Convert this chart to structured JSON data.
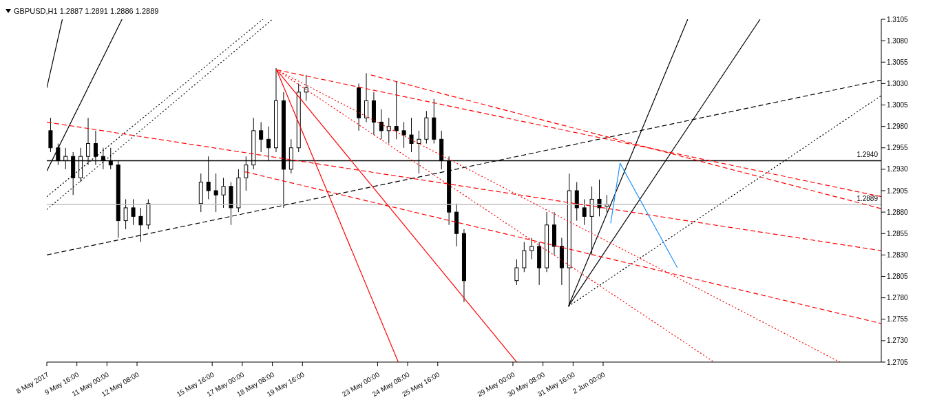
{
  "chart_data": {
    "type": "candlestick",
    "title": "GBPUSD,H1  1.2887 1.2891 1.2886 1.2889",
    "color": "#000000",
    "marker": "none",
    "x": [
      "2017-05-08T12:00",
      "2017-05-08T20:00",
      "2017-05-09T04:00",
      "2017-05-09T12:00",
      "2017-05-09T20:00",
      "2017-05-10T04:00",
      "2017-05-10T12:00",
      "2017-05-10T20:00",
      "2017-05-11T04:00",
      "2017-05-11T12:00",
      "2017-05-11T20:00",
      "2017-05-12T04:00",
      "2017-05-12T12:00",
      "2017-05-12T20:00",
      "2017-05-15T04:00",
      "2017-05-15T12:00",
      "2017-05-15T20:00",
      "2017-05-16T04:00",
      "2017-05-16T12:00",
      "2017-05-16T20:00",
      "2017-05-17T04:00",
      "2017-05-17T12:00",
      "2017-05-17T20:00",
      "2017-05-18T04:00",
      "2017-05-18T12:00",
      "2017-05-18T20:00",
      "2017-05-19T04:00",
      "2017-05-19T12:00",
      "2017-05-19T20:00",
      "2017-05-22T04:00",
      "2017-05-22T12:00",
      "2017-05-22T20:00",
      "2017-05-23T04:00",
      "2017-05-23T12:00",
      "2017-05-23T20:00",
      "2017-05-24T04:00",
      "2017-05-24T12:00",
      "2017-05-24T20:00",
      "2017-05-25T04:00",
      "2017-05-25T12:00",
      "2017-05-25T20:00",
      "2017-05-26T04:00",
      "2017-05-26T12:00",
      "2017-05-26T20:00",
      "2017-05-29T04:00",
      "2017-05-29T12:00",
      "2017-05-29T20:00",
      "2017-05-30T04:00",
      "2017-05-30T12:00",
      "2017-05-30T20:00",
      "2017-05-31T04:00",
      "2017-05-31T12:00",
      "2017-05-31T20:00",
      "2017-06-01T04:00",
      "2017-06-01T12:00",
      "2017-06-01T20:00",
      "2017-06-02T04:00"
    ],
    "ohlc": [
      [
        1.2975,
        1.299,
        1.295,
        1.2955
      ],
      [
        1.2955,
        1.296,
        1.2935,
        1.294
      ],
      [
        1.294,
        1.2955,
        1.293,
        1.2945
      ],
      [
        1.2945,
        1.295,
        1.29,
        1.292
      ],
      [
        1.292,
        1.2955,
        1.2915,
        1.2945
      ],
      [
        1.2945,
        1.299,
        1.2935,
        1.296
      ],
      [
        1.296,
        1.2975,
        1.2935,
        1.2945
      ],
      [
        1.2945,
        1.2955,
        1.293,
        1.294
      ],
      [
        1.294,
        1.2955,
        1.293,
        1.2935
      ],
      [
        1.2935,
        1.294,
        1.285,
        1.287
      ],
      [
        1.287,
        1.2895,
        1.286,
        1.2885
      ],
      [
        1.2885,
        1.2895,
        1.2865,
        1.2875
      ],
      [
        1.2875,
        1.2885,
        1.2845,
        1.2865
      ],
      [
        1.2865,
        1.2895,
        1.286,
        1.289
      ],
      [
        1.289,
        1.2925,
        1.288,
        1.2915
      ],
      [
        1.2915,
        1.2945,
        1.2895,
        1.2905
      ],
      [
        1.2905,
        1.2925,
        1.288,
        1.29
      ],
      [
        1.29,
        1.292,
        1.2885,
        1.291
      ],
      [
        1.291,
        1.2915,
        1.2865,
        1.2885
      ],
      [
        1.2885,
        1.293,
        1.288,
        1.292
      ],
      [
        1.292,
        1.2945,
        1.2905,
        1.2935
      ],
      [
        1.2935,
        1.299,
        1.293,
        1.2975
      ],
      [
        1.2975,
        1.2985,
        1.295,
        1.2965
      ],
      [
        1.2965,
        1.298,
        1.294,
        1.2955
      ],
      [
        1.2955,
        1.3048,
        1.295,
        1.301
      ],
      [
        1.301,
        1.302,
        1.2885,
        1.293
      ],
      [
        1.293,
        1.2965,
        1.2925,
        1.2955
      ],
      [
        1.2955,
        1.303,
        1.295,
        1.302
      ],
      [
        1.302,
        1.304,
        1.301,
        1.3025
      ],
      [
        1.3025,
        1.303,
        1.2975,
        1.299
      ],
      [
        1.299,
        1.3042,
        1.2985,
        1.301
      ],
      [
        1.301,
        1.302,
        1.297,
        1.2985
      ],
      [
        1.2985,
        1.3,
        1.2965,
        1.2975
      ],
      [
        1.2975,
        1.299,
        1.296,
        1.298
      ],
      [
        1.298,
        1.3032,
        1.2965,
        1.2975
      ],
      [
        1.2975,
        1.2985,
        1.2955,
        1.297
      ],
      [
        1.297,
        1.299,
        1.295,
        1.296
      ],
      [
        1.296,
        1.2975,
        1.2925,
        1.2965
      ],
      [
        1.2965,
        1.2998,
        1.296,
        1.299
      ],
      [
        1.299,
        1.3012,
        1.296,
        1.2965
      ],
      [
        1.2965,
        1.2975,
        1.293,
        1.294
      ],
      [
        1.294,
        1.2945,
        1.2865,
        1.288
      ],
      [
        1.288,
        1.289,
        1.284,
        1.2855
      ],
      [
        1.2855,
        1.286,
        1.2775,
        1.28
      ],
      [
        1.28,
        1.2825,
        1.2795,
        1.2815
      ],
      [
        1.2815,
        1.2845,
        1.281,
        1.2835
      ],
      [
        1.2835,
        1.285,
        1.2825,
        1.284
      ],
      [
        1.284,
        1.2845,
        1.2795,
        1.2815
      ],
      [
        1.2815,
        1.288,
        1.281,
        1.2865
      ],
      [
        1.2865,
        1.288,
        1.283,
        1.284
      ],
      [
        1.284,
        1.285,
        1.2795,
        1.2815
      ],
      [
        1.2815,
        1.2925,
        1.277,
        1.2905
      ],
      [
        1.2905,
        1.2915,
        1.287,
        1.2885
      ],
      [
        1.2885,
        1.2895,
        1.2865,
        1.2875
      ],
      [
        1.2875,
        1.291,
        1.283,
        1.2895
      ],
      [
        1.2895,
        1.2918,
        1.2875,
        1.2885
      ],
      [
        1.2887,
        1.29,
        1.288,
        1.2889
      ]
    ],
    "series": [
      {
        "type": "line",
        "color": "#000000",
        "line_style": "solid",
        "x": [
          "2017-05-31T11:00",
          "2017-06-05T18:00"
        ],
        "values": [
          1.277,
          1.3105
        ]
      },
      {
        "type": "line",
        "color": "#000000",
        "line_style": "solid",
        "x": [
          "2017-05-31T11:00",
          "2017-06-08T23:00"
        ],
        "values": [
          1.277,
          1.3105
        ]
      },
      {
        "type": "line",
        "color": "#000000",
        "line_style": "dotted",
        "x": [
          "2017-05-31T11:00",
          "2017-06-14T08:00"
        ],
        "values": [
          1.277,
          1.3016
        ]
      },
      {
        "type": "line",
        "color": "#000000",
        "line_style": "dashed",
        "x": [
          "2017-05-08T08:00",
          "2017-06-14T08:00"
        ],
        "values": [
          1.283,
          1.3034
        ]
      },
      {
        "type": "line",
        "color": "#000000",
        "line_style": "dotted",
        "x": [
          "2017-05-08T08:00",
          "2017-05-17T22:00"
        ],
        "values": [
          1.2898,
          1.3105
        ]
      },
      {
        "type": "line",
        "color": "#000000",
        "line_style": "dotted",
        "x": [
          "2017-05-08T08:00",
          "2017-05-18T08:00"
        ],
        "values": [
          1.2883,
          1.3105
        ]
      },
      {
        "type": "line",
        "color": "#000000",
        "line_style": "solid",
        "x": [
          "2017-05-08T08:00",
          "2017-05-11T16:00"
        ],
        "values": [
          1.2928,
          1.3105
        ]
      },
      {
        "type": "line",
        "color": "#000000",
        "line_style": "solid",
        "x": [
          "2017-05-08T08:00",
          "2017-05-09T00:30"
        ],
        "values": [
          1.3025,
          1.3105
        ]
      },
      {
        "type": "line",
        "color": "#ff0000",
        "line_style": "solid",
        "x": [
          "2017-05-18T12:30",
          "2017-05-23T22:00"
        ],
        "values": [
          1.3046,
          1.2705
        ]
      },
      {
        "type": "line",
        "color": "#ff0000",
        "line_style": "solid",
        "x": [
          "2017-05-18T12:30",
          "2017-05-29T04:00"
        ],
        "values": [
          1.3046,
          1.2705
        ]
      },
      {
        "type": "line",
        "color": "#ff0000",
        "line_style": "dashed",
        "x": [
          "2017-05-18T12:30",
          "2017-06-14T08:00"
        ],
        "values": [
          1.3046,
          1.2898
        ]
      },
      {
        "type": "line",
        "color": "#ff0000",
        "line_style": "dashed",
        "x": [
          "2017-05-22T17:00",
          "2017-06-14T08:00"
        ],
        "values": [
          1.304,
          1.2884
        ]
      },
      {
        "type": "line",
        "color": "#ff0000",
        "line_style": "dotted",
        "x": [
          "2017-05-18T12:30",
          "2017-06-06T22:00"
        ],
        "values": [
          1.3046,
          1.2705
        ]
      },
      {
        "type": "line",
        "color": "#ff0000",
        "line_style": "dotted",
        "x": [
          "2017-05-18T12:30",
          "2017-06-12T12:00"
        ],
        "values": [
          1.3046,
          1.2705
        ]
      },
      {
        "type": "line",
        "color": "#ff0000",
        "line_style": "dashed",
        "x": [
          "2017-05-08T08:00",
          "2017-06-14T08:00"
        ],
        "values": [
          1.2985,
          1.2835
        ]
      },
      {
        "type": "line",
        "color": "#ff0000",
        "line_style": "dashed",
        "x": [
          "2017-05-17T03:00",
          "2017-06-14T08:00"
        ],
        "values": [
          1.2927,
          1.275
        ]
      },
      {
        "type": "line",
        "color": "#1e90ff",
        "line_style": "solid",
        "x": [
          "2017-06-02T08:00",
          "2017-06-02T18:00",
          "2017-06-05T07:00"
        ],
        "values": [
          1.2867,
          1.2937,
          1.2815
        ]
      }
    ],
    "ref_lines": [
      {
        "axis": "y",
        "value": 1.294,
        "label": "1.2940",
        "color": "#000000"
      },
      {
        "axis": "y",
        "value": 1.2889,
        "label": "1.2889",
        "color": "#c0c0c0"
      }
    ],
    "xlim": [
      "2017-05-08T08:00",
      "2017-06-14T08:00"
    ],
    "xticks": [
      {
        "value": "2017-05-08T08:00",
        "label": "8 May 2017"
      },
      {
        "value": "2017-05-09T16:00",
        "label": "9 May 16:00"
      },
      {
        "value": "2017-05-11T00:00",
        "label": "11 May 00:00"
      },
      {
        "value": "2017-05-12T08:00",
        "label": "12 May 08:00"
      },
      {
        "value": "2017-05-15T16:00",
        "label": "15 May 16:00"
      },
      {
        "value": "2017-05-17T00:00",
        "label": "17 May 00:00"
      },
      {
        "value": "2017-05-18T08:00",
        "label": "18 May 08:00"
      },
      {
        "value": "2017-05-19T16:00",
        "label": "19 May 16:00"
      },
      {
        "value": "2017-05-23T00:00",
        "label": "23 May 00:00"
      },
      {
        "value": "2017-05-24T08:00",
        "label": "24 May 08:00"
      },
      {
        "value": "2017-05-25T16:00",
        "label": "25 May 16:00"
      },
      {
        "value": "2017-05-29T00:00",
        "label": "29 May 00:00"
      },
      {
        "value": "2017-05-30T08:00",
        "label": "30 May 08:00"
      },
      {
        "value": "2017-05-31T16:00",
        "label": "31 May 16:00"
      },
      {
        "value": "2017-06-02T00:00",
        "label": "2 Jun 00:00"
      }
    ],
    "ylim": [
      1.2705,
      1.3105
    ],
    "yticks": [
      1.2705,
      {
        "value": 1.273,
        "label": "1.2730"
      },
      1.2755,
      {
        "value": 1.278,
        "label": "1.2780"
      },
      1.2805,
      {
        "value": 1.283,
        "label": "1.2830"
      },
      1.2855,
      {
        "value": 1.288,
        "label": "1.2880"
      },
      1.2905,
      {
        "value": 1.293,
        "label": "1.2930"
      },
      1.2955,
      {
        "value": 1.298,
        "label": "1.2980"
      },
      1.3005,
      {
        "value": 1.303,
        "label": "1.3030"
      },
      1.3055,
      {
        "value": 1.308,
        "label": "1.3080"
      },
      1.3105
    ]
  }
}
